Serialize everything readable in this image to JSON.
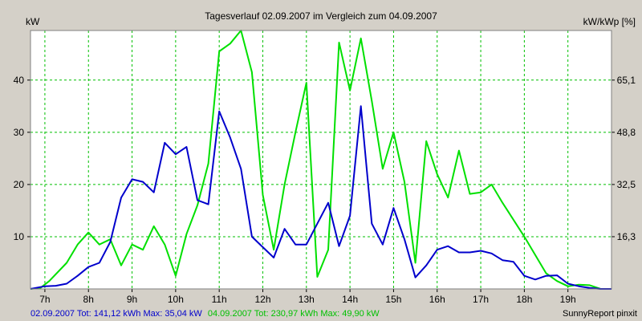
{
  "chart_data": {
    "type": "line",
    "title": "Tagesverlauf 02.09.2007 im Vergleich zum 04.09.2007",
    "ylabel_left": "kW",
    "ylabel_right": "kW/kWp [%]",
    "x_ticks": [
      "7h",
      "8h",
      "9h",
      "10h",
      "11h",
      "12h",
      "13h",
      "14h",
      "15h",
      "16h",
      "17h",
      "18h",
      "19h"
    ],
    "x_range": [
      6.67,
      20.0
    ],
    "ylim": [
      0,
      49.5
    ],
    "y_ticks_left": [
      10,
      20,
      30,
      40
    ],
    "y_ticks_right": [
      {
        "value": 10.0,
        "label": "16,3"
      },
      {
        "value": 20.0,
        "label": "32,5"
      },
      {
        "value": 30.0,
        "label": "48,8"
      },
      {
        "value": 40.0,
        "label": "65,1"
      }
    ],
    "grid": true,
    "colors": {
      "series_0902": "#0000cc",
      "series_0904": "#00e000",
      "grid": "#00c000",
      "plot_bg": "#ffffff",
      "frame_bg": "#d4d0c8",
      "axis": "#000000"
    },
    "series": [
      {
        "values": [
          [
            6.67,
            0
          ],
          [
            7.0,
            0.5
          ],
          [
            7.25,
            0.6
          ],
          [
            7.5,
            1
          ],
          [
            7.75,
            2.5
          ],
          [
            8.0,
            4.2
          ],
          [
            8.25,
            5
          ],
          [
            8.5,
            9
          ],
          [
            8.75,
            17.5
          ],
          [
            9.0,
            21
          ],
          [
            9.25,
            20.5
          ],
          [
            9.5,
            18.5
          ],
          [
            9.75,
            28
          ],
          [
            10.0,
            25.8
          ],
          [
            10.25,
            27.2
          ],
          [
            10.5,
            17
          ],
          [
            10.75,
            16.2
          ],
          [
            11.0,
            34
          ],
          [
            11.25,
            29
          ],
          [
            11.5,
            23
          ],
          [
            11.75,
            10
          ],
          [
            12.0,
            8
          ],
          [
            12.25,
            6
          ],
          [
            12.5,
            11.5
          ],
          [
            12.75,
            8.5
          ],
          [
            13.0,
            8.5
          ],
          [
            13.25,
            12.5
          ],
          [
            13.5,
            16.5
          ],
          [
            13.75,
            8.2
          ],
          [
            14.0,
            14
          ],
          [
            14.25,
            35
          ],
          [
            14.5,
            12.5
          ],
          [
            14.75,
            8.5
          ],
          [
            15.0,
            15.5
          ],
          [
            15.25,
            9.5
          ],
          [
            15.5,
            2.2
          ],
          [
            15.75,
            4.5
          ],
          [
            16.0,
            7.5
          ],
          [
            16.25,
            8.2
          ],
          [
            16.5,
            7
          ],
          [
            16.75,
            7
          ],
          [
            17.0,
            7.3
          ],
          [
            17.25,
            6.8
          ],
          [
            17.5,
            5.5
          ],
          [
            17.75,
            5.2
          ],
          [
            18.0,
            2.5
          ],
          [
            18.25,
            1.8
          ],
          [
            18.5,
            2.5
          ],
          [
            18.75,
            2.6
          ],
          [
            19.0,
            1
          ],
          [
            19.25,
            0.5
          ],
          [
            19.5,
            0.2
          ],
          [
            19.75,
            0
          ],
          [
            20.0,
            0
          ]
        ]
      },
      {
        "values": [
          [
            6.67,
            0
          ],
          [
            6.9,
            0.2
          ],
          [
            7.1,
            1.5
          ],
          [
            7.5,
            5
          ],
          [
            7.75,
            8.5
          ],
          [
            8.0,
            10.8
          ],
          [
            8.25,
            8.5
          ],
          [
            8.5,
            9.5
          ],
          [
            8.75,
            4.5
          ],
          [
            9.0,
            8.5
          ],
          [
            9.25,
            7.5
          ],
          [
            9.5,
            12
          ],
          [
            9.75,
            8.5
          ],
          [
            10.0,
            2.5
          ],
          [
            10.25,
            10.5
          ],
          [
            10.5,
            16
          ],
          [
            10.75,
            24
          ],
          [
            11.0,
            45.5
          ],
          [
            11.25,
            47
          ],
          [
            11.5,
            49.5
          ],
          [
            11.75,
            41.5
          ],
          [
            12.0,
            18
          ],
          [
            12.25,
            7.5
          ],
          [
            12.5,
            20
          ],
          [
            12.75,
            30
          ],
          [
            13.0,
            39.5
          ],
          [
            13.25,
            2.3
          ],
          [
            13.5,
            7.5
          ],
          [
            13.75,
            47.2
          ],
          [
            14.0,
            38
          ],
          [
            14.25,
            48
          ],
          [
            14.5,
            36
          ],
          [
            14.75,
            23
          ],
          [
            15.0,
            30
          ],
          [
            15.25,
            20.5
          ],
          [
            15.5,
            5
          ],
          [
            15.75,
            28.3
          ],
          [
            16.0,
            22
          ],
          [
            16.25,
            17.5
          ],
          [
            16.5,
            26.5
          ],
          [
            16.75,
            18.2
          ],
          [
            17.0,
            18.5
          ],
          [
            17.25,
            20
          ],
          [
            17.5,
            16.5
          ],
          [
            18.0,
            10
          ],
          [
            18.5,
            3
          ],
          [
            18.75,
            1.5
          ],
          [
            19.0,
            0.5
          ],
          [
            19.25,
            0.8
          ],
          [
            19.5,
            0.7
          ],
          [
            19.75,
            0
          ],
          [
            20.0,
            0
          ]
        ]
      }
    ],
    "footer": {
      "series1_text": "02.09.2007 Tot: 141,12 kWh Max: 35,04 kW",
      "series2_text": "04.09.2007 Tot: 230,97 kWh Max: 49,90 kW",
      "credit": "SunnyReport pinxit"
    }
  }
}
